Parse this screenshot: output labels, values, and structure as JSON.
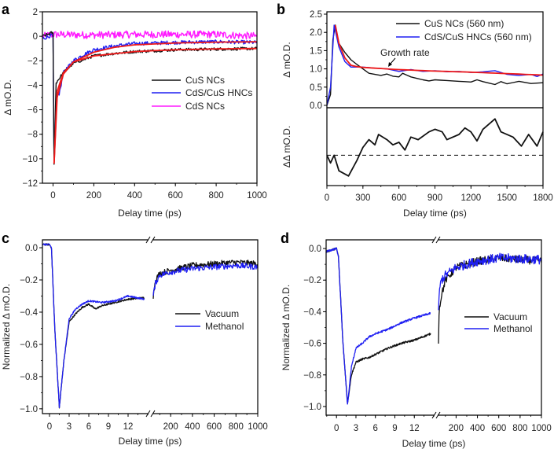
{
  "colors": {
    "black": "#111111",
    "blue": "#1f1ff2",
    "magenta": "#ff1aff",
    "red": "#ee1a1a"
  },
  "chart_data": [
    {
      "panel": "a",
      "type": "line",
      "xlabel": "Delay time (ps)",
      "ylabel": "Δ mO.D.",
      "xlim": [
        -52,
        1000
      ],
      "ylim": [
        -12,
        2
      ],
      "xticks": [
        0,
        200,
        400,
        600,
        800,
        1000
      ],
      "yticks": [
        -12,
        -10,
        -8,
        -6,
        -4,
        -2,
        0,
        2
      ],
      "legend_position": "center-right",
      "series": [
        {
          "name": "CdS NCs",
          "color": "magenta",
          "legend": true,
          "noise": 0.3,
          "x": [
            -50,
            0,
            200,
            400,
            600,
            800,
            1000
          ],
          "y": [
            0.0,
            0.15,
            0.1,
            0.15,
            0.15,
            0.15,
            0.0
          ]
        },
        {
          "name": "CdS/CuS HNCs",
          "color": "blue",
          "legend": true,
          "noise": 0.15,
          "x": [
            -50,
            -5,
            0,
            5,
            20,
            30,
            50,
            100,
            150,
            200,
            300,
            400,
            600,
            800,
            1000
          ],
          "y": [
            -0.2,
            0.1,
            -0.2,
            -10.0,
            -4.6,
            -4.8,
            -3.0,
            -2.0,
            -1.5,
            -1.1,
            -0.8,
            -0.6,
            -0.5,
            -0.45,
            -0.5
          ]
        },
        {
          "name": "CuS NCs",
          "color": "black",
          "legend": true,
          "noise": 0.12,
          "x": [
            -50,
            -5,
            0,
            5,
            15,
            50,
            100,
            200,
            300,
            400,
            600,
            800,
            1000
          ],
          "y": [
            0.0,
            0.3,
            0.2,
            -10.4,
            -3.8,
            -3.0,
            -2.2,
            -1.6,
            -1.4,
            -1.25,
            -1.1,
            -1.05,
            -1.0
          ]
        },
        {
          "name": "CuS fit",
          "color": "red",
          "legend": false,
          "noise": 0,
          "x": [
            5,
            20,
            50,
            100,
            200,
            400,
            600,
            800,
            1000
          ],
          "y": [
            -10.4,
            -4.5,
            -3.0,
            -2.1,
            -1.6,
            -1.25,
            -1.1,
            -1.03,
            -1.0
          ]
        },
        {
          "name": "CdS/CuS fit",
          "color": "red",
          "legend": false,
          "noise": 0,
          "x": [
            5,
            20,
            50,
            100,
            200,
            300,
            400,
            600,
            800,
            1000
          ],
          "y": [
            -10.4,
            -5.0,
            -3.1,
            -2.1,
            -1.3,
            -0.9,
            -0.7,
            -0.55,
            -0.48,
            -0.45
          ]
        }
      ]
    },
    {
      "panel": "b",
      "type": "line",
      "xlabel": "Delay time (ps)",
      "ylabel": "Δ mO.D.",
      "ylabel2": "ΔΔ mO.D.",
      "xlim": [
        0,
        1800
      ],
      "ylim": [
        -0.065,
        2.565
      ],
      "ylim2": [
        -1.17,
        1.83
      ],
      "xticks": [
        0,
        300,
        600,
        900,
        1200,
        1500,
        1800
      ],
      "yticks": [
        0.0,
        0.5,
        1.0,
        1.5,
        2.0,
        2.5
      ],
      "legend_position": "top-right",
      "annotation": "Growth rate",
      "series": [
        {
          "name": "CuS NCs (560 nm)",
          "color": "black",
          "legend": true,
          "x": [
            0,
            30,
            50,
            70,
            100,
            150,
            200,
            250,
            300,
            350,
            400,
            450,
            500,
            550,
            600,
            630,
            700,
            800,
            850,
            900,
            1000,
            1100,
            1200,
            1250,
            1300,
            1400,
            1450,
            1500,
            1600,
            1700,
            1800
          ],
          "y": [
            0,
            0.3,
            1.8,
            2.2,
            1.7,
            1.45,
            1.25,
            1.12,
            1.0,
            0.88,
            0.85,
            0.82,
            0.86,
            0.8,
            0.78,
            0.88,
            0.78,
            0.7,
            0.67,
            0.7,
            0.68,
            0.66,
            0.64,
            0.7,
            0.65,
            0.57,
            0.65,
            0.59,
            0.66,
            0.6,
            0.62
          ]
        },
        {
          "name": "CdS/CuS HNCs (560 nm)",
          "color": "blue",
          "legend": true,
          "x": [
            0,
            30,
            60,
            100,
            150,
            200,
            300,
            400,
            500,
            600,
            700,
            800,
            900,
            1000,
            1100,
            1200,
            1300,
            1400,
            1500,
            1600,
            1700,
            1750,
            1800
          ],
          "y": [
            0,
            0.5,
            2.2,
            1.6,
            1.2,
            1.05,
            1.05,
            1.02,
            1.0,
            0.93,
            0.98,
            0.93,
            0.95,
            0.92,
            0.93,
            0.9,
            0.92,
            0.95,
            0.85,
            0.82,
            0.85,
            0.79,
            0.86
          ]
        },
        {
          "name": "Fit",
          "color": "red",
          "legend": false,
          "x": [
            70,
            100,
            150,
            200,
            250,
            300,
            600,
            900,
            1200,
            1500,
            1800
          ],
          "y": [
            2.2,
            1.7,
            1.3,
            1.1,
            1.06,
            1.04,
            0.98,
            0.94,
            0.91,
            0.87,
            0.83
          ]
        }
      ],
      "difference": {
        "name": "ΔΔ",
        "color": "black",
        "x": [
          0,
          30,
          60,
          100,
          180,
          250,
          300,
          350,
          400,
          430,
          500,
          550,
          600,
          650,
          700,
          760,
          850,
          900,
          960,
          1000,
          1100,
          1150,
          1200,
          1250,
          1300,
          1400,
          1450,
          1550,
          1620,
          1680,
          1750,
          1800
        ],
        "y": [
          0,
          -0.3,
          0.0,
          -0.6,
          -0.8,
          -0.2,
          0.3,
          0.6,
          0.4,
          0.8,
          0.6,
          0.4,
          0.5,
          0.2,
          0.7,
          0.6,
          0.9,
          1.0,
          0.9,
          0.6,
          0.8,
          1.05,
          0.9,
          0.55,
          1.0,
          1.4,
          0.9,
          0.7,
          0.35,
          0.8,
          0.35,
          0.9
        ],
        "baseline": 0
      }
    },
    {
      "panel": "c",
      "type": "line",
      "broken_x_axis": true,
      "xlabel": "Delay time (ps)",
      "ylabel": "Normalized  Δ mO.D.",
      "xlim": [
        [
          -1.08,
          15
        ],
        [
          40,
          1000
        ]
      ],
      "ylim": [
        -1.03,
        0.049
      ],
      "xticks": [
        [
          0,
          3,
          6,
          9,
          12
        ],
        [
          200,
          400,
          600,
          800,
          1000
        ]
      ],
      "yticks": [
        -1.0,
        -0.8,
        -0.6,
        -0.4,
        -0.2,
        0.0
      ],
      "legend_position": "center-right",
      "series": [
        {
          "name": "Vacuum",
          "color": "black",
          "noise": [
            0.005,
            0.018
          ],
          "segments": [
            {
              "x": [
                -1.08,
                0,
                0.3,
                0.8,
                1.5,
                2.2,
                3,
                4,
                5,
                6,
                7,
                8,
                10,
                12,
                14.5
              ],
              "y": [
                0.02,
                0.02,
                0.0,
                -0.5,
                -0.99,
                -0.7,
                -0.46,
                -0.41,
                -0.37,
                -0.35,
                -0.38,
                -0.36,
                -0.34,
                -0.32,
                -0.31
              ]
            },
            {
              "x": [
                40,
                60,
                100,
                200,
                400,
                600,
                800,
                1000
              ],
              "y": [
                -0.3,
                -0.2,
                -0.16,
                -0.14,
                -0.11,
                -0.1,
                -0.09,
                -0.1
              ]
            }
          ]
        },
        {
          "name": "Methanol",
          "color": "blue",
          "noise": [
            0.005,
            0.018
          ],
          "segments": [
            {
              "x": [
                -1.08,
                0,
                0.3,
                0.8,
                1.5,
                2.2,
                3,
                4,
                5,
                6,
                8,
                10,
                12,
                14.5
              ],
              "y": [
                0.02,
                0.02,
                0.0,
                -0.5,
                -0.99,
                -0.7,
                -0.44,
                -0.38,
                -0.35,
                -0.33,
                -0.34,
                -0.33,
                -0.3,
                -0.32
              ]
            },
            {
              "x": [
                40,
                60,
                100,
                200,
                400,
                600,
                800,
                1000
              ],
              "y": [
                -0.3,
                -0.22,
                -0.17,
                -0.15,
                -0.13,
                -0.12,
                -0.11,
                -0.12
              ]
            }
          ]
        }
      ]
    },
    {
      "panel": "d",
      "type": "line",
      "broken_x_axis": true,
      "xlabel": "Delay time (ps)",
      "ylabel": "Normalized  Δ mO.D.",
      "xlim": [
        [
          -1.6,
          15
        ],
        [
          35,
          1000
        ]
      ],
      "ylim": [
        -1.055,
        0.055
      ],
      "xticks": [
        [
          0,
          3,
          6,
          9,
          12
        ],
        [
          200,
          400,
          600,
          800,
          1000
        ]
      ],
      "yticks": [
        -1.0,
        -0.8,
        -0.6,
        -0.4,
        -0.2,
        0.0
      ],
      "legend_position": "center-right",
      "series": [
        {
          "name": "Vacuum",
          "color": "black",
          "noise": [
            0.006,
            0.025
          ],
          "segments": [
            {
              "x": [
                -1.6,
                0,
                0.3,
                1,
                1.7,
                2.3,
                3,
                4,
                5,
                6,
                8,
                10,
                12,
                14.5
              ],
              "y": [
                -0.02,
                0.0,
                -0.05,
                -0.6,
                -0.98,
                -0.8,
                -0.72,
                -0.7,
                -0.69,
                -0.67,
                -0.63,
                -0.6,
                -0.58,
                -0.54
              ]
            },
            {
              "x": [
                35,
                40,
                60,
                100,
                200,
                400,
                600,
                1000
              ],
              "y": [
                -0.58,
                -0.4,
                -0.3,
                -0.2,
                -0.12,
                -0.08,
                -0.06,
                -0.08
              ]
            }
          ]
        },
        {
          "name": "Methanol",
          "color": "blue",
          "noise": [
            0.006,
            0.03
          ],
          "segments": [
            {
              "x": [
                -1.6,
                0,
                0.3,
                1,
                1.7,
                2.3,
                3,
                4,
                5,
                6,
                8,
                10,
                12,
                14.5
              ],
              "y": [
                -0.02,
                0.0,
                -0.05,
                -0.6,
                -0.99,
                -0.75,
                -0.63,
                -0.6,
                -0.56,
                -0.54,
                -0.51,
                -0.47,
                -0.44,
                -0.41
              ]
            },
            {
              "x": [
                35,
                40,
                60,
                100,
                200,
                400,
                600,
                1000
              ],
              "y": [
                -0.38,
                -0.3,
                -0.2,
                -0.17,
                -0.12,
                -0.08,
                -0.06,
                -0.07
              ]
            }
          ]
        }
      ]
    }
  ]
}
